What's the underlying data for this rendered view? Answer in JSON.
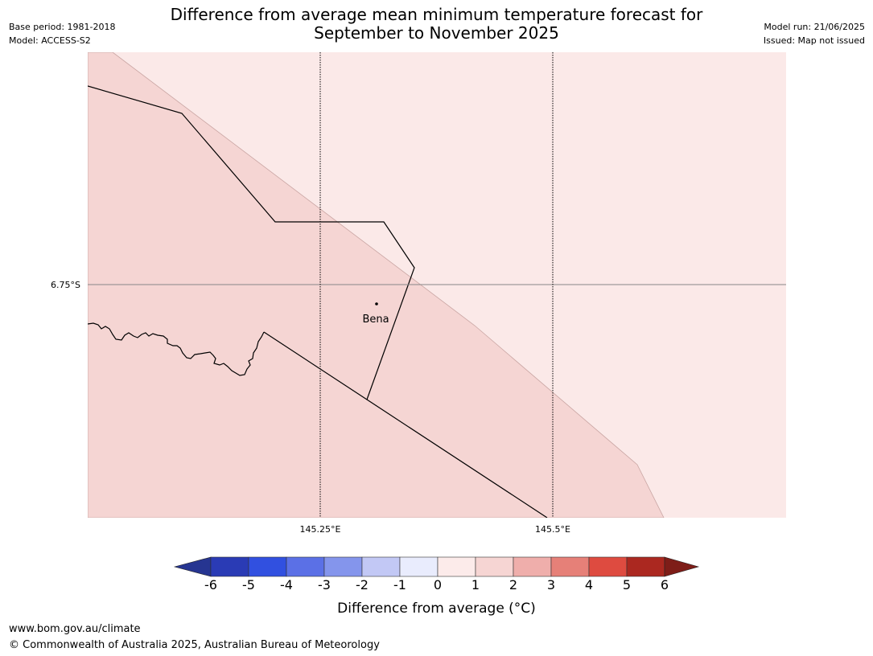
{
  "title_line1": "Difference from average mean minimum temperature forecast for",
  "title_line2": "September to November 2025",
  "base_period": "Base period: 1981-2018",
  "model": "Model: ACCESS-S2",
  "model_run": "Model run: 21/06/2025",
  "issued": "Issued: Map not issued",
  "map": {
    "lat_label": "6.75°S",
    "lon_labels": [
      "145.25°E",
      "145.5°E"
    ],
    "place_label": "Bena",
    "regions": [
      {
        "category": "1 to 2",
        "color": "#f5d5d3"
      },
      {
        "category": "0 to 1",
        "color": "#fbe9e8"
      }
    ]
  },
  "colorbar": {
    "title": "Difference from average (°C)",
    "ticks": [
      "-6",
      "-5",
      "-4",
      "-3",
      "-2",
      "-1",
      "0",
      "1",
      "2",
      "3",
      "4",
      "5",
      "6"
    ],
    "colors": [
      "#263591",
      "#2a3bb5",
      "#3150e0",
      "#5b70e6",
      "#8495ec",
      "#c2c8f5",
      "#e9ecfd",
      "#fcebea",
      "#f6d5d3",
      "#efaeab",
      "#e68078",
      "#de4b40",
      "#ab2820",
      "#7e1d18"
    ]
  },
  "footer_url": "www.bom.gov.au/climate",
  "footer_copyright": "© Commonwealth of Australia 2025, Australian Bureau of Meteorology"
}
